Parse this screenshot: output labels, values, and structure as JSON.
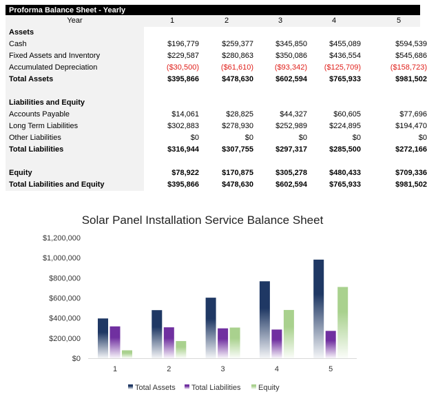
{
  "sheet": {
    "title": "Proforma Balance Sheet - Yearly",
    "year_label": "Year",
    "years": [
      "1",
      "2",
      "3",
      "4",
      "5"
    ],
    "rows": [
      {
        "label": "Assets",
        "style": "bold",
        "values": []
      },
      {
        "label": "Cash",
        "style": "",
        "values": [
          "$196,779",
          "$259,377",
          "$345,850",
          "$455,089",
          "$594,539"
        ]
      },
      {
        "label": "Fixed Assets and Inventory",
        "style": "",
        "values": [
          "$229,587",
          "$280,863",
          "$350,086",
          "$436,554",
          "$545,686"
        ]
      },
      {
        "label": "Accumulated Depreciation",
        "style": "neg",
        "values": [
          "($30,500)",
          "($61,610)",
          "($93,342)",
          "($125,709)",
          "($158,723)"
        ]
      },
      {
        "label": "Total Assets",
        "style": "bold",
        "values": [
          "$395,866",
          "$478,630",
          "$602,594",
          "$765,933",
          "$981,502"
        ]
      },
      {
        "label": "",
        "style": "",
        "values": []
      },
      {
        "label": "Liabilities and Equity",
        "style": "bold",
        "values": []
      },
      {
        "label": "Accounts Payable",
        "style": "",
        "values": [
          "$14,061",
          "$28,825",
          "$44,327",
          "$60,605",
          "$77,696"
        ]
      },
      {
        "label": "Long Term Liabilities",
        "style": "",
        "values": [
          "$302,883",
          "$278,930",
          "$252,989",
          "$224,895",
          "$194,470"
        ]
      },
      {
        "label": "Other Liabilities",
        "style": "",
        "values": [
          "$0",
          "$0",
          "$0",
          "$0",
          "$0"
        ]
      },
      {
        "label": "Total Liabilities",
        "style": "bold",
        "values": [
          "$316,944",
          "$307,755",
          "$297,317",
          "$285,500",
          "$272,166"
        ]
      },
      {
        "label": "",
        "style": "",
        "values": []
      },
      {
        "label": "Equity",
        "style": "bold",
        "values": [
          "$78,922",
          "$170,875",
          "$305,278",
          "$480,433",
          "$709,336"
        ]
      },
      {
        "label": "Total Liabilities and Equity",
        "style": "bold",
        "values": [
          "$395,866",
          "$478,630",
          "$602,594",
          "$765,933",
          "$981,502"
        ]
      }
    ]
  },
  "chart_data": {
    "type": "bar",
    "title": "Solar Panel Installation Service Balance Sheet",
    "categories": [
      "1",
      "2",
      "3",
      "4",
      "5"
    ],
    "ylim": [
      0,
      1200000
    ],
    "yticks": [
      "$0",
      "$200,000",
      "$400,000",
      "$600,000",
      "$800,000",
      "$1,000,000",
      "$1,200,000"
    ],
    "grid": false,
    "legend_position": "bottom",
    "series": [
      {
        "name": "Total Assets",
        "color": "#1f3864",
        "values": [
          395866,
          478630,
          602594,
          765933,
          981502
        ]
      },
      {
        "name": "Total Liabilities",
        "color": "#7030a0",
        "values": [
          316944,
          307755,
          297317,
          285500,
          272166
        ]
      },
      {
        "name": "Equity",
        "color": "#a9d18e",
        "values": [
          78922,
          170875,
          305278,
          480433,
          709336
        ]
      }
    ]
  }
}
